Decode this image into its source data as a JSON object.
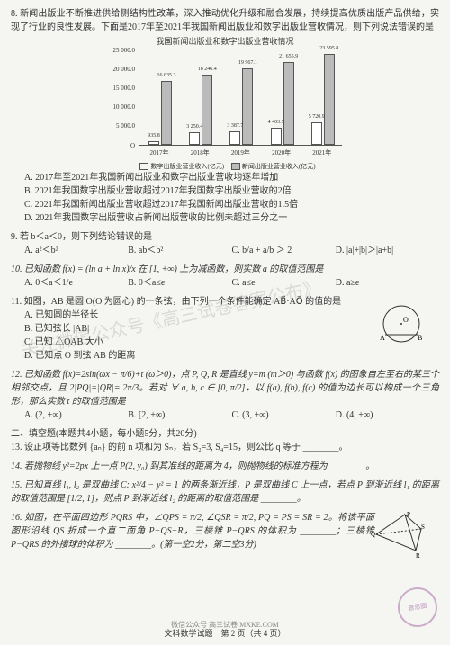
{
  "q8": {
    "stem1": "8. 新闻出版业不断推进供给侧结构性改革，深入推动优化升级和融合发展，持续提高优质出版产品供给，实现了行业的良性发展。下面是2017年至2021年我国新闻出版业和数字出版业营收情况，则下列说法错误的是",
    "chart": {
      "title": "我国新闻出版业和数字出版业营收情况",
      "ylabel_top": "25 000.0",
      "yticks": [
        "25 000.0",
        "20 000.0",
        "15 000.0",
        "10 000.0",
        "5 000.0",
        "O"
      ],
      "ymax": 25000,
      "years": [
        "2017年",
        "2018年",
        "2019年",
        "2020年",
        "2021年"
      ],
      "digital": [
        935.8,
        3250.4,
        3387.7,
        4403.5,
        5720.9
      ],
      "digital_labels": [
        "935.8",
        "3 250.4",
        "3 387.7",
        "4 403.5",
        "5 720.9"
      ],
      "news": [
        16635.3,
        18246.4,
        19967.1,
        21655.9,
        23595.8
      ],
      "news_labels": [
        "16 635.3",
        "18 246.4",
        "19 967.1",
        "21 655.9",
        "23 595.8"
      ],
      "legend_left": "数字出版业营业收入(亿元)",
      "legend_right": "新闻出版业营业收入(亿元)"
    },
    "A": "A. 2017年至2021年我国新闻出版业和数字出版业营收均逐年增加",
    "B": "B. 2021年我国数字出版业营收超过2017年我国数字出版业营收的2倍",
    "C": "C. 2021年我国新闻出版业营收超过2017年我国新闻出版业营收的1.5倍",
    "D": "D. 2021年我国数字出版营收占新闻出版营收的比例未超过三分之一"
  },
  "q9": {
    "stem": "9. 若 b＜a＜0，则下列结论错误的是",
    "A": "A. a²＜b²",
    "B": "B. ab＜b²",
    "C": "C. b/a + a/b ＞ 2",
    "D": "D. |a|+|b|＞|a+b|"
  },
  "q10": {
    "stem": "10. 已知函数 f(x) = (ln a + ln x)/x 在 [1, +∞) 上为减函数，则实数 a 的取值范围是",
    "A": "A. 0＜a＜1/e",
    "B": "B. 0＜a≤e",
    "C": "C. a≤e",
    "D": "D. a≥e"
  },
  "q11": {
    "stem": "11. 如图，AB 是圆 O(O 为圆心) 的一条弦，由下列一个条件能确定 AB⃗·AO⃗ 的值的是",
    "A": "A. 已知圆的半径长",
    "B": "B. 已知弦长 |AB|",
    "C": "C. 已知 △OAB 大小",
    "D": "D. 已知点 O 到弦 AB 的距离",
    "fig": {
      "O": "O",
      "A": "A",
      "B": "B"
    }
  },
  "q12": {
    "stem": "12. 已知函数 f(x)=2sin(ωx − π/6)+t (ω＞0)，点 P, Q, R 是直线 y=m (m＞0) 与函数 f(x) 的图象自左至右的某三个相邻交点，且 2|PQ|=|QR|= 2π/3。若对 ∀ a, b, c ∈ [0, π/2]，以 f(a), f(b), f(c) 的值为边长可以构成一个三角形，那么实数 t 的取值范围是",
    "A": "A. (2, +∞)",
    "B": "B. [2, +∞)",
    "C": "C. (3, +∞)",
    "D": "D. (4, +∞)"
  },
  "section2": "二、填空题(本题共4小题，每小题5分，共20分)",
  "q13": "13. 设正项等比数列 {aₙ} 的前 n 项和为 Sₙ，若 S₂=3, S₄=15，则公比 q 等于 ________。",
  "q14": "14. 若抛物线 y²=2px 上一点 P(2, y₀) 到其准线的距离为 4，则抛物线的标准方程为 ________。",
  "q15": "15. 已知直线 l₁, l₂ 是双曲线 C: x²/4 − y² = 1 的两条渐近线，P 是双曲线 C 上一点，若点 P 到渐近线 l₁ 的距离的取值范围是 [1/2, 1]，则点 P 到渐近线 l₂ 的距离的取值范围是 ________。",
  "q16": {
    "stem": "16. 如图，在平面四边形 PQRS 中，∠QPS = π/2, ∠QSR = π/2, PQ = PS = SR = 2。将该平面图形沿线 QS 折成一个直二面角 P−QS−R，三棱锥 P−QRS 的体积为 ________；三棱锥 P−QRS 的外接球的体积为 ________。(第一空2分，第二空3分)",
    "fig": {
      "P": "P",
      "Q": "Q",
      "R": "R",
      "S": "S"
    }
  },
  "footer": "文科数学试题　第 2 页（共 4 页）",
  "watermark": "关注微信公众号《高三试卷答案公布》",
  "bottom_wm": "微信公众号 高三试卷 MXKE.COM",
  "stamp": "普恩圈"
}
